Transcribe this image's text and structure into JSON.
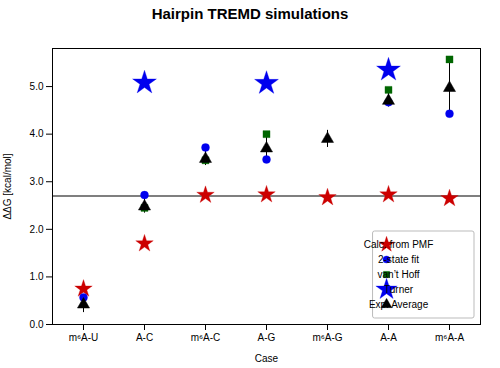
{
  "chart_data": {
    "type": "scatter",
    "title": "Hairpin TREMD simulations",
    "xlabel": "Case",
    "ylabel": "ΔΔG [kcal/mol]",
    "categories": [
      "m⁶A-U",
      "A-C",
      "m⁶A-C",
      "A-G",
      "m⁶A-G",
      "A-A",
      "m⁶A-A"
    ],
    "series": [
      {
        "name": "Calc. from PMF",
        "color": "#cc0000",
        "marker": "star",
        "values": [
          0.75,
          1.7,
          2.72,
          2.73,
          2.67,
          2.73,
          2.65
        ]
      },
      {
        "name": "2-state fit",
        "color": "#0000ee",
        "marker": "circle",
        "values": [
          0.57,
          2.72,
          3.72,
          3.47,
          null,
          4.67,
          4.43
        ]
      },
      {
        "name": "van’t Hoff",
        "color": "#006600",
        "marker": "square",
        "values": [
          null,
          2.45,
          3.45,
          4.0,
          null,
          4.93,
          5.57
        ]
      },
      {
        "name": "Turner",
        "color": "#0000ee",
        "marker": "star",
        "values": [
          null,
          5.08,
          null,
          5.07,
          null,
          5.35,
          null
        ]
      },
      {
        "name": "Exp. Average",
        "color": "#000000",
        "marker": "triangle",
        "values": [
          0.42,
          2.48,
          3.48,
          3.7,
          3.9,
          4.7,
          4.97
        ],
        "errors": [
          0.17,
          0.14,
          0.14,
          0.27,
          0.18,
          0.13,
          0.3
        ]
      }
    ],
    "hline": {
      "y": 2.7,
      "color": "#000000"
    },
    "ylim": [
      0,
      5.8
    ],
    "yticks": [
      0,
      1,
      2,
      3,
      4,
      5
    ],
    "grid": false,
    "legend": "lower right"
  }
}
